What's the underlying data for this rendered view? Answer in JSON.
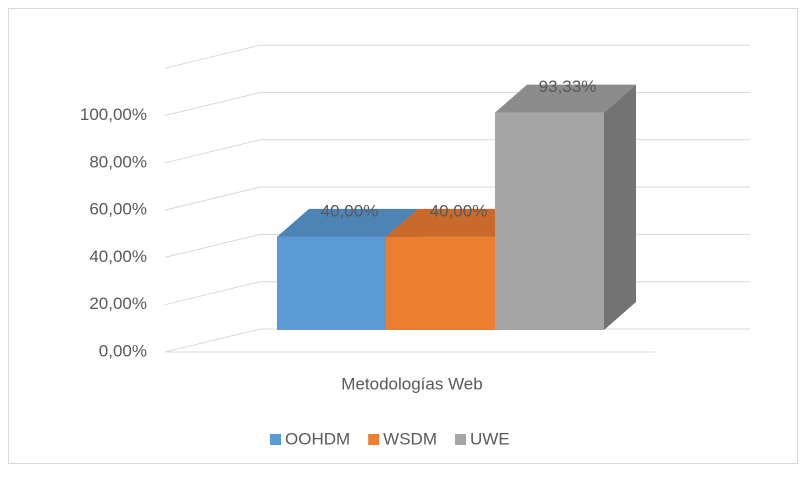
{
  "chart_data": {
    "type": "bar3d",
    "categories": [
      "Metodologías Web"
    ],
    "series": [
      {
        "name": "OOHDM",
        "color": "#5b9bd5",
        "values": [
          40
        ],
        "value_labels": [
          "40,00%"
        ]
      },
      {
        "name": "WSDM",
        "color": "#ed7d31",
        "values": [
          40
        ],
        "value_labels": [
          "40,00%"
        ]
      },
      {
        "name": "UWE",
        "color": "#a5a5a5",
        "values": [
          93.33
        ],
        "value_labels": [
          "93,33%"
        ]
      }
    ],
    "ylim": [
      0,
      120
    ],
    "yticks": [
      {
        "value": 0,
        "label": "0,00%"
      },
      {
        "value": 20,
        "label": "20,00%"
      },
      {
        "value": 40,
        "label": "40,00%"
      },
      {
        "value": 60,
        "label": "60,00%"
      },
      {
        "value": 80,
        "label": "80,00%"
      },
      {
        "value": 100,
        "label": "100,00%"
      }
    ],
    "grid": true,
    "legend": "bottom"
  }
}
